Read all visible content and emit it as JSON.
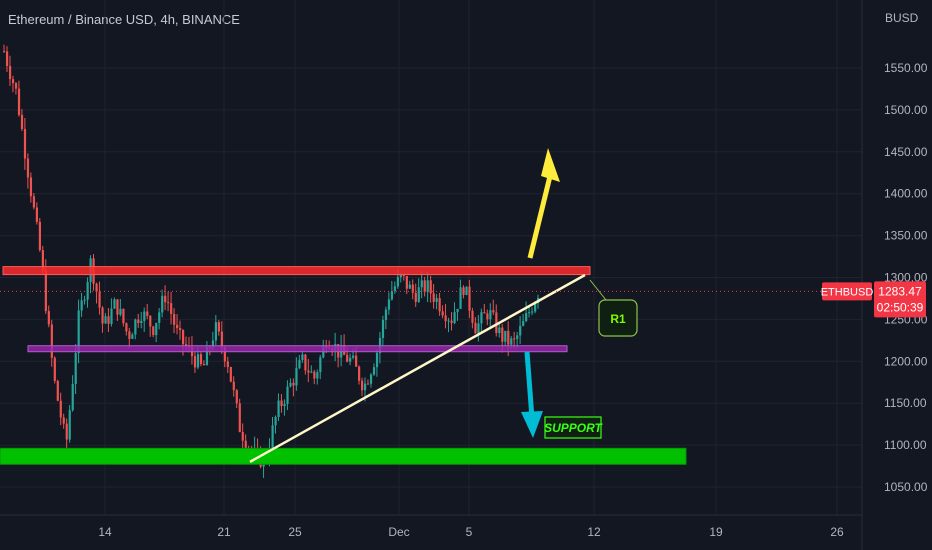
{
  "header": {
    "title": "Ethereum / Binance USD, 4h, BINANCE",
    "currency": "BUSD"
  },
  "colors": {
    "background": "#131722",
    "up": "#26a69a",
    "down": "#ef5350",
    "resistance": "#ff2b2b",
    "range": "#9c27b0",
    "support_zone": "#00c000",
    "trendline": "#fff7c7",
    "arrow_up": "#ffeb3b",
    "arrow_down": "#00bcd4",
    "price_tag": "#f23645"
  },
  "chart_data": {
    "type": "candlestick",
    "symbol": "ETHBUSD",
    "timeframe": "4h",
    "y_ticks": [
      "1550.00",
      "1500.00",
      "1450.00",
      "1400.00",
      "1350.00",
      "1300.00",
      "1250.00",
      "1200.00",
      "1150.00",
      "1100.00",
      "1050.00"
    ],
    "x_ticks": [
      "14",
      "21",
      "25",
      "Dec",
      "5",
      "12",
      "19",
      "26"
    ],
    "ylim": [
      1030,
      1610
    ],
    "last_price": "1283.47",
    "countdown": "02:50:39",
    "approx_close_path": [
      1570,
      1520,
      1420,
      1320,
      1180,
      1100,
      1250,
      1320,
      1240,
      1270,
      1230,
      1260,
      1240,
      1280,
      1230,
      1210,
      1190,
      1240,
      1200,
      1120,
      1090,
      1080,
      1140,
      1170,
      1200,
      1180,
      1230,
      1210,
      1200,
      1170,
      1210,
      1280,
      1300,
      1280,
      1290,
      1270,
      1250,
      1290,
      1240,
      1260,
      1230,
      1220,
      1250,
      1283
    ],
    "annotations": {
      "resistance_zone": [
        1302,
        1313
      ],
      "range_line": 1215,
      "support_zone": [
        1080,
        1095
      ],
      "trendline": {
        "from": 1080,
        "to": 1303
      },
      "labels": [
        "R1",
        "SUPPORT"
      ]
    }
  }
}
